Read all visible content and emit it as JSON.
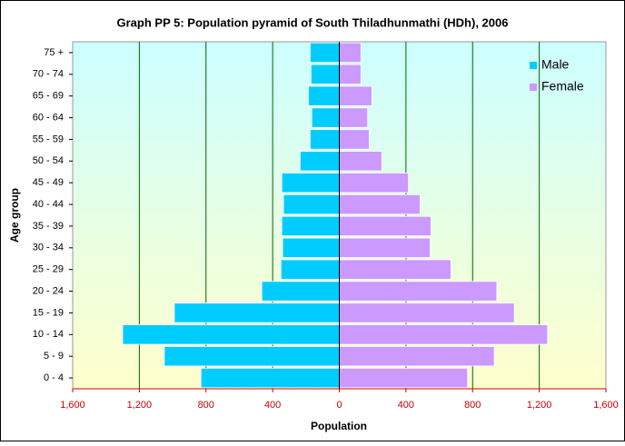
{
  "chart_data": {
    "type": "pyramid",
    "title": "Graph PP 5: Population pyramid of South Thiladhunmathi (HDh), 2006",
    "x_label": "Population",
    "y_label": "Age group",
    "categories": [
      "0 - 4",
      "5 - 9",
      "10 - 14",
      "15 - 19",
      "20 - 24",
      "25 - 29",
      "30 - 34",
      "35 - 39",
      "40 - 44",
      "45 - 49",
      "50 - 54",
      "55 - 59",
      "60 - 64",
      "65 - 69",
      "70 - 74",
      "75 +"
    ],
    "series": [
      {
        "name": "Male",
        "color": "#00ccff",
        "values": [
          -830,
          -1050,
          -1300,
          -990,
          -465,
          -350,
          -340,
          -345,
          -335,
          -345,
          -235,
          -175,
          -165,
          -185,
          -170,
          -175
        ]
      },
      {
        "name": "Female",
        "color": "#cc99ff",
        "values": [
          770,
          930,
          1250,
          1050,
          945,
          670,
          545,
          550,
          485,
          415,
          255,
          180,
          170,
          195,
          130,
          130
        ]
      }
    ],
    "xlim": [
      -1600,
      1600
    ],
    "xticks": [
      {
        "value": -1600,
        "label": "1,600"
      },
      {
        "value": -1200,
        "label": "1,200"
      },
      {
        "value": -800,
        "label": "800"
      },
      {
        "value": -400,
        "label": "400"
      },
      0,
      400,
      800,
      {
        "value": 1200,
        "label": "1,200"
      },
      {
        "value": 1600,
        "label": "1,600"
      }
    ],
    "grid": true,
    "legend": "top-right"
  }
}
